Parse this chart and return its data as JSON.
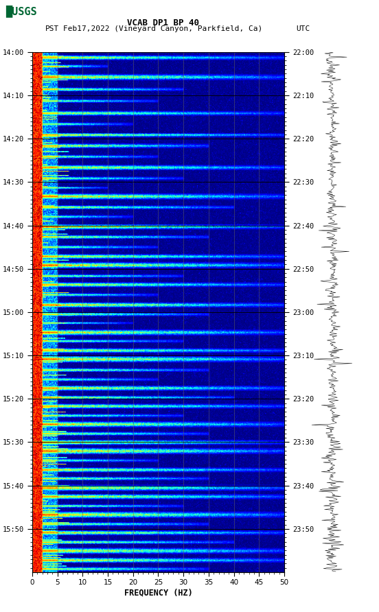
{
  "title_line1": "VCAB DP1 BP 40",
  "title_line2_left": "PST",
  "title_line2_mid": "Feb17,2022 (Vineyard Canyon, Parkfield, Ca)",
  "title_line2_right": "UTC",
  "xlabel": "FREQUENCY (HZ)",
  "freq_min": 0,
  "freq_max": 50,
  "freq_ticks": [
    0,
    5,
    10,
    15,
    20,
    25,
    30,
    35,
    40,
    45,
    50
  ],
  "time_labels_left": [
    "14:00",
    "14:10",
    "14:20",
    "14:30",
    "14:40",
    "14:50",
    "15:00",
    "15:10",
    "15:20",
    "15:30",
    "15:40",
    "15:50"
  ],
  "time_labels_right": [
    "22:00",
    "22:10",
    "22:20",
    "22:30",
    "22:40",
    "22:50",
    "23:00",
    "23:10",
    "23:20",
    "23:30",
    "23:40",
    "23:50"
  ],
  "n_time_steps": 720,
  "n_freq_bins": 400,
  "vertical_grid_freqs": [
    5,
    10,
    15,
    20,
    25,
    30,
    35,
    40,
    45
  ],
  "bg_color": "white",
  "grid_color": "#606060",
  "usgs_green": "#006633",
  "spectrogram_cmap": "jet",
  "fig_width": 5.52,
  "fig_height": 8.92,
  "dpi": 100
}
